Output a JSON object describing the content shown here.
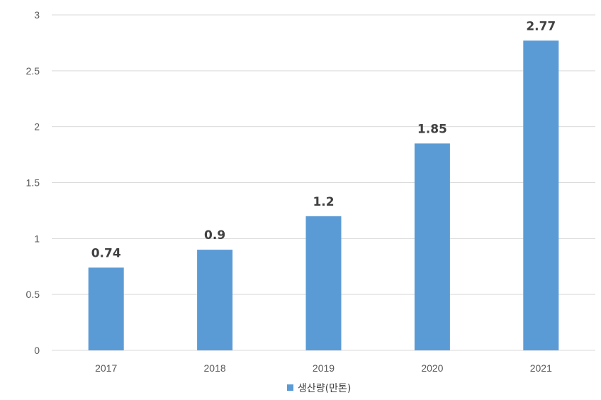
{
  "chart_data": {
    "type": "bar",
    "categories": [
      "2017",
      "2018",
      "2019",
      "2020",
      "2021"
    ],
    "series": [
      {
        "name": "생산량(만톤)",
        "values": [
          0.74,
          0.9,
          1.2,
          1.85,
          2.77
        ],
        "color": "#5B9BD5"
      }
    ],
    "y_ticks": [
      "0",
      "0.5",
      "1",
      "1.5",
      "2",
      "2.5",
      "3"
    ],
    "data_labels": [
      "0.74",
      "0.9",
      "1.2",
      "1.85",
      "2.77"
    ],
    "ylim": [
      0,
      3
    ],
    "grid": true,
    "legend_position": "bottom",
    "grid_color": "#D9D9D9",
    "axis_color": "#D9D9D9"
  }
}
